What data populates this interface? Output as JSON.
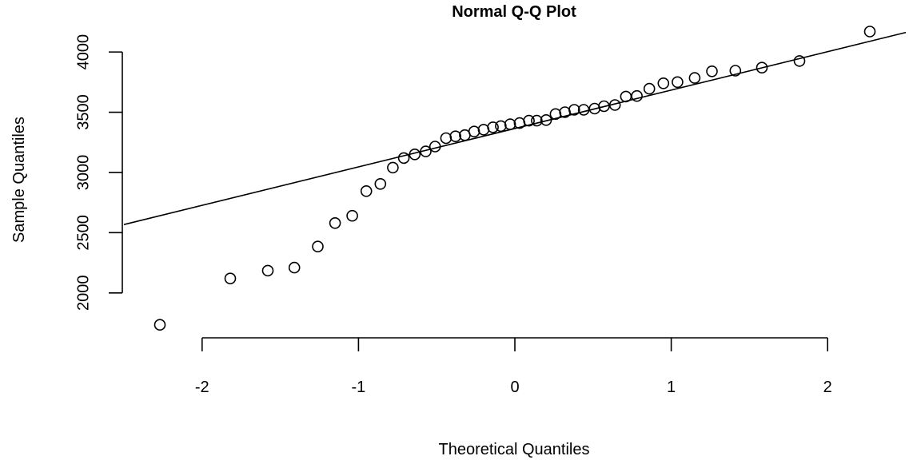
{
  "chart_data": {
    "type": "scatter",
    "title": "Normal Q-Q Plot",
    "xlabel": "Theoretical Quantiles",
    "ylabel": "Sample Quantiles",
    "xlim": [
      -2.5,
      2.5
    ],
    "ylim": [
      1720,
      4160
    ],
    "x_ticks": [
      -2,
      -1,
      0,
      1,
      2
    ],
    "x_tick_labels": [
      "-2",
      "-1",
      "0",
      "1",
      "2"
    ],
    "y_ticks": [
      2000,
      2500,
      3000,
      3500,
      4000
    ],
    "y_tick_labels": [
      "2000",
      "2500",
      "3000",
      "3500",
      "4000"
    ],
    "grid": false,
    "legend": null,
    "reference_line": {
      "intercept": 3365,
      "slope": 319
    },
    "series": [
      {
        "marker": "open-circle",
        "color": "#000000",
        "x": [
          -2.27,
          -1.82,
          -1.58,
          -1.41,
          -1.26,
          -1.15,
          -1.04,
          -0.95,
          -0.86,
          -0.78,
          -0.71,
          -0.64,
          -0.57,
          -0.51,
          -0.44,
          -0.38,
          -0.32,
          -0.26,
          -0.2,
          -0.14,
          -0.09,
          -0.03,
          0.03,
          0.09,
          0.14,
          0.2,
          0.26,
          0.32,
          0.38,
          0.44,
          0.51,
          0.57,
          0.64,
          0.71,
          0.78,
          0.86,
          0.95,
          1.04,
          1.15,
          1.26,
          1.41,
          1.58,
          1.82,
          2.27
        ],
        "y": [
          1735,
          2120,
          2185,
          2210,
          2385,
          2580,
          2640,
          2845,
          2905,
          3040,
          3120,
          3150,
          3175,
          3215,
          3285,
          3300,
          3310,
          3340,
          3355,
          3375,
          3385,
          3400,
          3410,
          3430,
          3430,
          3435,
          3485,
          3500,
          3520,
          3520,
          3530,
          3550,
          3560,
          3630,
          3635,
          3695,
          3740,
          3750,
          3785,
          3840,
          3845,
          3870,
          3925,
          4170
        ]
      }
    ]
  }
}
